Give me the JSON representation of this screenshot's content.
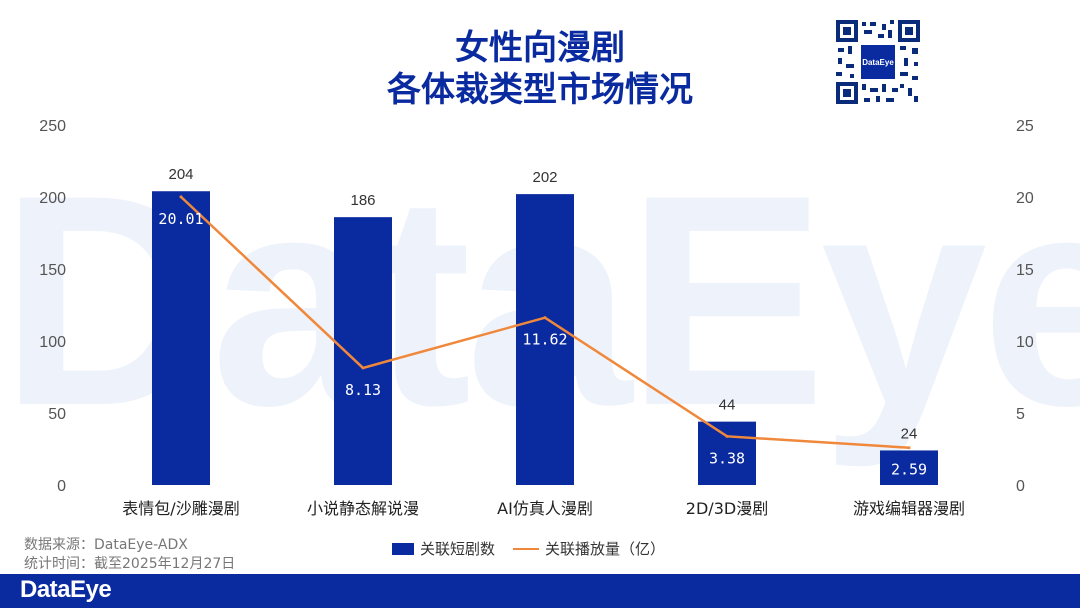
{
  "watermark": "DataEye",
  "title_line1": "女性向漫剧",
  "title_line2": "各体裁类型市场情况",
  "source_line": "数据来源：DataEye-ADX",
  "date_line": "统计时间：截至2025年12月27日",
  "footer_logo": "DataEye",
  "qr_logo": "DataEye",
  "chart_data": {
    "type": "bar",
    "title": "女性向漫剧 各体裁类型市场情况",
    "categories": [
      "表情包/沙雕漫剧",
      "小说静态解说漫",
      "AI仿真人漫剧",
      "2D/3D漫剧",
      "游戏编辑器漫剧"
    ],
    "series": [
      {
        "name": "关联短剧数",
        "type": "bar",
        "axis": "left",
        "color": "#0a2aa0",
        "values": [
          204,
          186,
          202,
          44,
          24
        ],
        "labels": [
          "204",
          "186",
          "202",
          "44",
          "24"
        ]
      },
      {
        "name": "关联播放量（亿）",
        "type": "line",
        "axis": "right",
        "color": "#f0883c",
        "values": [
          20.01,
          8.13,
          11.62,
          3.38,
          2.59
        ],
        "labels": [
          "20.01",
          "8.13",
          "11.62",
          "3.38",
          "2.59"
        ]
      }
    ],
    "ylim": [
      0,
      250
    ],
    "yticks": [
      "0",
      "50",
      "100",
      "150",
      "200",
      "250"
    ],
    "y2lim": [
      0,
      25
    ],
    "y2ticks": [
      "0",
      "5",
      "10",
      "15",
      "20",
      "25"
    ],
    "grid": false,
    "legend": "bottom"
  }
}
